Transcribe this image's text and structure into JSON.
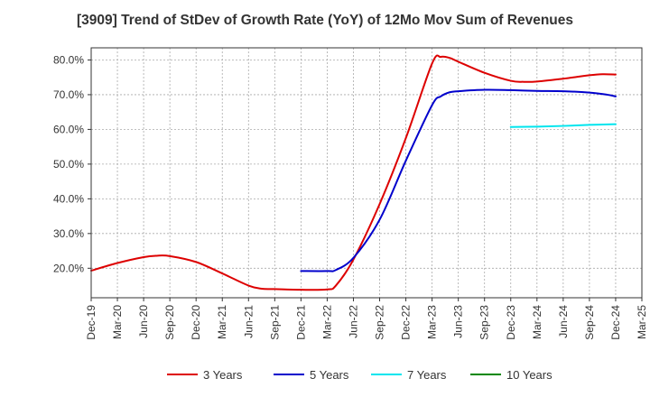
{
  "chart_data": {
    "type": "line",
    "title": "[3909]  Trend of StDev of Growth Rate (YoY) of 12Mo Mov Sum of Revenues",
    "xlabel": "",
    "ylabel": "",
    "ylim": [
      11.5,
      83.5
    ],
    "y_ticks": [
      20,
      30,
      40,
      50,
      60,
      70,
      80
    ],
    "y_tick_labels": [
      "20.0%",
      "30.0%",
      "40.0%",
      "50.0%",
      "60.0%",
      "70.0%",
      "80.0%"
    ],
    "x_tick_labels": [
      "Dec-19",
      "Mar-20",
      "Jun-20",
      "Sep-20",
      "Dec-20",
      "Mar-21",
      "Jun-21",
      "Sep-21",
      "Dec-21",
      "Mar-22",
      "Jun-22",
      "Sep-22",
      "Dec-22",
      "Mar-23",
      "Jun-23",
      "Sep-23",
      "Dec-23",
      "Mar-24",
      "Jun-24",
      "Sep-24",
      "Dec-24",
      "Mar-25"
    ],
    "grid": true,
    "legend_position": "bottom",
    "series": [
      {
        "name": "3 Years",
        "color": "#dd0000",
        "points": [
          [
            0,
            19.3
          ],
          [
            1,
            21.5
          ],
          [
            2,
            23.2
          ],
          [
            2.5,
            23.6
          ],
          [
            3,
            23.5
          ],
          [
            4,
            21.8
          ],
          [
            5,
            18.5
          ],
          [
            6,
            15.0
          ],
          [
            6.5,
            14.1
          ],
          [
            7,
            14.0
          ],
          [
            8,
            13.8
          ],
          [
            9,
            13.9
          ],
          [
            9.33,
            15.0
          ],
          [
            10,
            22.5
          ],
          [
            11,
            38.5
          ],
          [
            12,
            57.5
          ],
          [
            13,
            79.0
          ],
          [
            13.33,
            80.9
          ],
          [
            13.67,
            80.6
          ],
          [
            14,
            79.5
          ],
          [
            15,
            76.3
          ],
          [
            16,
            74.0
          ],
          [
            16.5,
            73.7
          ],
          [
            17,
            73.8
          ],
          [
            18,
            74.6
          ],
          [
            19,
            75.6
          ],
          [
            19.5,
            75.9
          ],
          [
            20,
            75.8
          ]
        ]
      },
      {
        "name": "5 Years",
        "color": "#0000cc",
        "points": [
          [
            8,
            19.2
          ],
          [
            9,
            19.2
          ],
          [
            9.33,
            19.5
          ],
          [
            10,
            23.0
          ],
          [
            11,
            34.0
          ],
          [
            12,
            51.0
          ],
          [
            13,
            67.0
          ],
          [
            13.33,
            69.5
          ],
          [
            13.67,
            70.7
          ],
          [
            14,
            71.0
          ],
          [
            15,
            71.4
          ],
          [
            16,
            71.3
          ],
          [
            17,
            71.1
          ],
          [
            18,
            71.0
          ],
          [
            19,
            70.6
          ],
          [
            19.67,
            70.0
          ],
          [
            20,
            69.5
          ]
        ]
      },
      {
        "name": "7 Years",
        "color": "#00e5ee",
        "points": [
          [
            16,
            60.7
          ],
          [
            17,
            60.8
          ],
          [
            18,
            61.0
          ],
          [
            19,
            61.3
          ],
          [
            20,
            61.5
          ]
        ]
      },
      {
        "name": "10 Years",
        "color": "#008800",
        "points": []
      }
    ]
  }
}
